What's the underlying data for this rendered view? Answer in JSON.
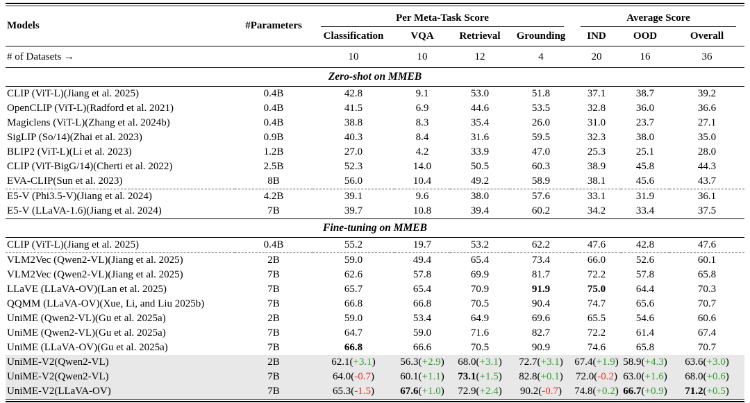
{
  "table": {
    "header": {
      "models": "Models",
      "parameters": "#Parameters",
      "meta_task_group": "Per Meta-Task Score",
      "avg_group": "Average Score",
      "sub_columns": [
        "Classification",
        "VQA",
        "Retrieval",
        "Grounding",
        "IND",
        "OOD",
        "Overall"
      ]
    },
    "datasets_row": {
      "label": "# of Datasets →",
      "counts": [
        "10",
        "10",
        "12",
        "4",
        "20",
        "16",
        "36"
      ]
    },
    "colors": {
      "positive_delta": "#2ea12e",
      "negative_delta": "#ee3124",
      "highlight_row": "#e8e8e8"
    },
    "sections": [
      {
        "title": "Zero-shot on MMEB",
        "rows": [
          {
            "model": "CLIP (ViT-L)(Jiang et al. 2025)",
            "params": "0.4B",
            "scores": [
              "42.8",
              "9.1",
              "53.0",
              "51.8",
              "37.1",
              "38.7",
              "39.2"
            ]
          },
          {
            "model": "OpenCLIP (ViT-L)(Radford et al. 2021)",
            "params": "0.4B",
            "scores": [
              "41.5",
              "6.9",
              "44.6",
              "53.5",
              "32.8",
              "36.0",
              "36.6"
            ]
          },
          {
            "model": "Magiclens (ViT-L)(Zhang et al. 2024b)",
            "params": "0.4B",
            "scores": [
              "38.8",
              "8.3",
              "35.4",
              "26.0",
              "31.0",
              "23.7",
              "27.1"
            ]
          },
          {
            "model": "SigLIP (So/14)(Zhai et al. 2023)",
            "params": "0.9B",
            "scores": [
              "40.3",
              "8.4",
              "31.6",
              "59.5",
              "32.3",
              "38.0",
              "35.0"
            ]
          },
          {
            "model": "BLIP2 (ViT-L)(Li et al. 2023)",
            "params": "1.2B",
            "scores": [
              "27.0",
              "4.2",
              "33.9",
              "47.0",
              "25.3",
              "25.1",
              "28.0"
            ]
          },
          {
            "model": "CLIP (ViT-BigG/14)(Cherti et al. 2022)",
            "params": "2.5B",
            "scores": [
              "52.3",
              "14.0",
              "50.5",
              "60.3",
              "38.9",
              "45.8",
              "44.3"
            ]
          },
          {
            "model": "EVA-CLIP(Sun et al. 2023)",
            "params": "8B",
            "scores": [
              "56.0",
              "10.4",
              "49.2",
              "58.9",
              "38.1",
              "45.6",
              "43.7"
            ]
          },
          {
            "model": "E5-V (Phi3.5-V)(Jiang et al. 2024)",
            "params": "4.2B",
            "dashed_top": true,
            "scores": [
              "39.1",
              "9.6",
              "38.0",
              "57.6",
              "33.1",
              "31.9",
              "36.1"
            ]
          },
          {
            "model": "E5-V (LLaVA-1.6)(Jiang et al. 2024)",
            "params": "7B",
            "scores": [
              "39.7",
              "10.8",
              "39.4",
              "60.2",
              "34.2",
              "33.4",
              "37.5"
            ]
          }
        ]
      },
      {
        "title": "Fine-tuning on MMEB",
        "rows": [
          {
            "model": "CLIP (ViT-L)(Jiang et al. 2025)",
            "params": "0.4B",
            "scores": [
              "55.2",
              "19.7",
              "53.2",
              "62.2",
              "47.6",
              "42.8",
              "47.6"
            ]
          },
          {
            "model": "VLM2Vec (Qwen2-VL)(Jiang et al. 2025)",
            "params": "2B",
            "dashed_top": true,
            "scores": [
              "59.0",
              "49.4",
              "65.4",
              "73.4",
              "66.0",
              "52.6",
              "60.1"
            ]
          },
          {
            "model": "VLM2Vec (Qwen2-VL)(Jiang et al. 2025)",
            "params": "7B",
            "scores": [
              "62.6",
              "57.8",
              "69.9",
              "81.7",
              "72.2",
              "57.8",
              "65.8"
            ]
          },
          {
            "model": "LLaVE (LLaVA-OV)(Lan et al. 2025)",
            "params": "7B",
            "scores": [
              "65.7",
              "65.4",
              "70.9",
              {
                "v": "91.9",
                "b": true
              },
              {
                "v": "75.0",
                "b": true
              },
              "64.4",
              "70.3"
            ]
          },
          {
            "model": "QQMM (LLaVA-OV)(Xue, Li, and Liu 2025b)",
            "params": "7B",
            "scores": [
              "66.8",
              "66.8",
              "70.5",
              "90.4",
              "74.7",
              "65.6",
              "70.7"
            ]
          },
          {
            "model": "UniME (Qwen2-VL)(Gu et al. 2025a)",
            "params": "2B",
            "scores": [
              "59.0",
              "53.4",
              "64.9",
              "69.6",
              "65.5",
              "54.6",
              "60.6"
            ]
          },
          {
            "model": "UniME (Qwen2-VL)(Gu et al. 2025a)",
            "params": "7B",
            "scores": [
              "64.7",
              "59.0",
              "71.6",
              "82.7",
              "72.2",
              "61.4",
              "67.4"
            ]
          },
          {
            "model": "UniME (LLaVA-OV)(Gu et al. 2025a)",
            "params": "7B",
            "scores": [
              {
                "v": "66.8",
                "b": true
              },
              "66.6",
              "70.5",
              "90.9",
              "74.6",
              "65.8",
              "70.7"
            ]
          },
          {
            "model": "UniME-V2(Qwen2-VL)",
            "params": "2B",
            "highlight": true,
            "scores": [
              {
                "v": "62.1",
                "d": "+3.1"
              },
              {
                "v": "56.3",
                "d": "+2.9"
              },
              {
                "v": "68.0",
                "d": "+3.1"
              },
              {
                "v": "72.7",
                "d": "+3.1"
              },
              {
                "v": "67.4",
                "d": "+1.9"
              },
              {
                "v": "58.9",
                "d": "+4.3"
              },
              {
                "v": "63.6",
                "d": "+3.0"
              }
            ]
          },
          {
            "model": "UniME-V2(Qwen2-VL)",
            "params": "7B",
            "highlight": true,
            "scores": [
              {
                "v": "64.0",
                "d": "-0.7"
              },
              {
                "v": "60.1",
                "d": "+1.1"
              },
              {
                "v": "73.1",
                "b": true,
                "d": "+1.5"
              },
              {
                "v": "82.8",
                "d": "+0.1"
              },
              {
                "v": "72.0",
                "d": "-0.2"
              },
              {
                "v": "63.0",
                "d": "+1.6"
              },
              {
                "v": "68.0",
                "d": "+0.6"
              }
            ]
          },
          {
            "model": "UniME-V2(LLaVA-OV)",
            "params": "7B",
            "highlight": true,
            "scores": [
              {
                "v": "65.3",
                "d": "-1.5"
              },
              {
                "v": "67.6",
                "b": true,
                "d": "+1.0"
              },
              {
                "v": "72.9",
                "d": "+2.4"
              },
              {
                "v": "90.2",
                "d": "-0.7"
              },
              {
                "v": "74.8",
                "d": "+0.2"
              },
              {
                "v": "66.7",
                "b": true,
                "d": "+0.9"
              },
              {
                "v": "71.2",
                "b": true,
                "d": "+0.5"
              }
            ]
          }
        ]
      }
    ]
  }
}
